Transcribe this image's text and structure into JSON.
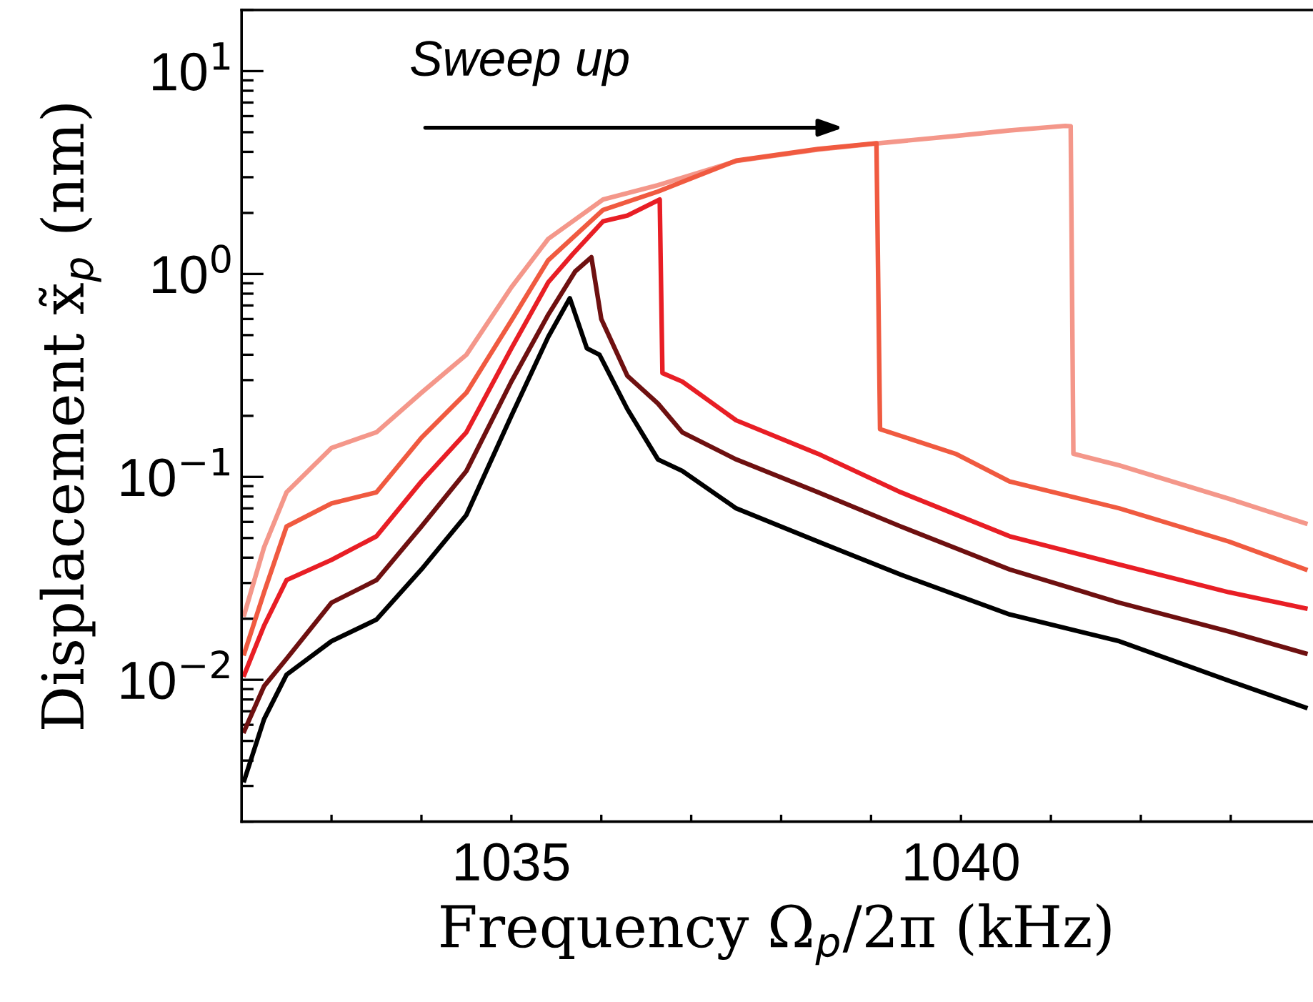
{
  "chart_data": {
    "type": "line",
    "xlabel": "Frequency Ω$_{p}$/2π (kHz)",
    "ylabel": "Displacement x̃$_{p}$ (nm)",
    "annotations": [
      "Sweep up"
    ],
    "log": "y",
    "xlim": [
      1032,
      1043.9
    ],
    "ylim": [
      0.002,
      20
    ],
    "xticks": [
      {
        "value": 1033,
        "label": null
      },
      {
        "value": 1034,
        "label": null
      },
      1035,
      {
        "value": 1036,
        "label": null
      },
      {
        "value": 1037,
        "label": null
      },
      {
        "value": 1038,
        "label": null
      },
      {
        "value": 1039,
        "label": null
      },
      1040,
      {
        "value": 1041,
        "label": null
      },
      {
        "value": 1042,
        "label": null
      },
      {
        "value": 1043,
        "label": null
      }
    ],
    "yticks": [
      {
        "value": 0.01,
        "label": "10$^{−2}$"
      },
      {
        "value": 0.1,
        "label": "10$^{−1}$"
      },
      {
        "value": 1,
        "label": "10$^{0}$"
      },
      {
        "value": 10,
        "label": "10$^{1}$"
      }
    ],
    "grid": false,
    "legend": false,
    "marker": "none",
    "line_style": "solid",
    "series": [
      {
        "color": "#f4978a",
        "x": [
          1032.03,
          1032.25,
          1032.5,
          1033.0,
          1033.5,
          1034.0,
          1034.5,
          1035.0,
          1035.41,
          1036.02,
          1036.63,
          1037.5,
          1038.41,
          1039.06,
          1039.94,
          1040.54,
          1041.16,
          1041.22,
          1041.25,
          1041.76,
          1042.98,
          1043.83
        ],
        "values": [
          0.021,
          0.045,
          0.084,
          0.139,
          0.166,
          0.26,
          0.4,
          0.86,
          1.49,
          2.33,
          2.74,
          3.6,
          4.1,
          4.4,
          4.79,
          5.1,
          5.37,
          5.35,
          0.13,
          0.114,
          0.078,
          0.059
        ]
      },
      {
        "color": "#f05a40",
        "x": [
          1032.03,
          1032.25,
          1032.5,
          1033.0,
          1033.5,
          1034.0,
          1034.5,
          1035.0,
          1035.41,
          1036.02,
          1036.63,
          1037.5,
          1038.41,
          1039.06,
          1039.1,
          1039.94,
          1040.54,
          1041.76,
          1042.98,
          1043.83
        ],
        "values": [
          0.0135,
          0.027,
          0.057,
          0.074,
          0.084,
          0.156,
          0.26,
          0.59,
          1.17,
          2.07,
          2.55,
          3.62,
          4.13,
          4.41,
          0.172,
          0.13,
          0.095,
          0.07,
          0.048,
          0.035
        ]
      },
      {
        "color": "#e81e25",
        "x": [
          1032.03,
          1032.25,
          1032.5,
          1033.0,
          1033.5,
          1034.0,
          1034.5,
          1035.0,
          1035.41,
          1035.68,
          1036.02,
          1036.29,
          1036.65,
          1036.68,
          1036.9,
          1037.5,
          1038.41,
          1039.33,
          1040.54,
          1041.76,
          1042.98,
          1043.83
        ],
        "values": [
          0.0106,
          0.0185,
          0.031,
          0.039,
          0.051,
          0.095,
          0.166,
          0.43,
          0.91,
          1.25,
          1.82,
          1.94,
          2.33,
          0.325,
          0.295,
          0.19,
          0.13,
          0.084,
          0.051,
          0.037,
          0.027,
          0.0225
        ]
      },
      {
        "color": "#6e1010",
        "x": [
          1032.03,
          1032.25,
          1032.5,
          1033.0,
          1033.5,
          1034.0,
          1034.5,
          1035.0,
          1035.41,
          1035.71,
          1035.89,
          1036.0,
          1036.29,
          1036.63,
          1036.9,
          1037.5,
          1038.41,
          1039.33,
          1040.54,
          1041.76,
          1042.98,
          1043.83
        ],
        "values": [
          0.0056,
          0.0093,
          0.0127,
          0.024,
          0.031,
          0.057,
          0.107,
          0.295,
          0.63,
          1.03,
          1.21,
          0.6,
          0.315,
          0.23,
          0.166,
          0.122,
          0.084,
          0.057,
          0.035,
          0.024,
          0.0173,
          0.0135
        ]
      },
      {
        "color": "#000000",
        "x": [
          1032.03,
          1032.25,
          1032.5,
          1033.0,
          1033.5,
          1034.0,
          1034.5,
          1035.0,
          1035.41,
          1035.65,
          1035.84,
          1035.98,
          1036.29,
          1036.63,
          1036.9,
          1037.5,
          1038.41,
          1039.33,
          1040.54,
          1041.76,
          1042.98,
          1043.83
        ],
        "values": [
          0.0032,
          0.0064,
          0.0106,
          0.0155,
          0.0198,
          0.035,
          0.065,
          0.2,
          0.49,
          0.76,
          0.43,
          0.4,
          0.216,
          0.122,
          0.107,
          0.07,
          0.048,
          0.033,
          0.021,
          0.0155,
          0.0099,
          0.0073
        ]
      }
    ]
  }
}
